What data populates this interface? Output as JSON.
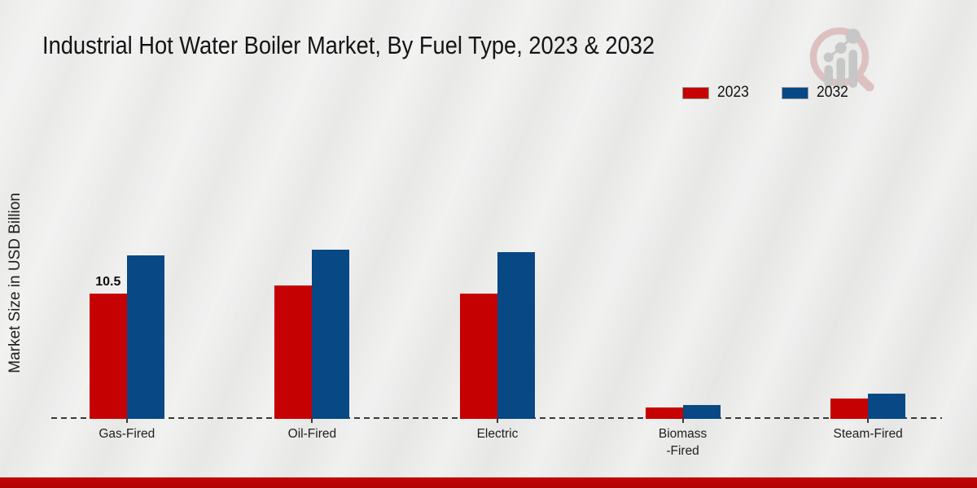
{
  "title": "Industrial Hot Water Boiler Market, By Fuel Type, 2023 & 2032",
  "ylabel": "Market Size in USD Billion",
  "legend": [
    {
      "label": "2023",
      "color": "#c60101"
    },
    {
      "label": "2032",
      "color": "#074885"
    }
  ],
  "colors": {
    "bar_2023": "#c60101",
    "bar_2032": "#074885",
    "background": "#e8e8e7",
    "axis_dash": "#3a3a3a",
    "bottom_accent": "#b90404",
    "logo_pink": "#dcbcbc",
    "logo_gray": "#c4c4c4"
  },
  "chart_data": {
    "type": "bar",
    "categories": [
      "Gas-Fired",
      "Oil-Fired",
      "Electric",
      "Biomass\n-Fired",
      "Steam-Fired"
    ],
    "series": [
      {
        "name": "2023",
        "color": "#c60101",
        "values": [
          10.5,
          11.2,
          10.5,
          0.95,
          1.7
        ],
        "point_labels": [
          "10.5",
          null,
          null,
          null,
          null
        ]
      },
      {
        "name": "2032",
        "color": "#074885",
        "values": [
          13.7,
          14.2,
          14.0,
          1.15,
          2.1
        ],
        "point_labels": [
          null,
          null,
          null,
          null,
          null
        ]
      }
    ],
    "title": "Industrial Hot Water Boiler Market, By Fuel Type, 2023 & 2032",
    "xlabel": "",
    "ylabel": "Market Size in USD Billion",
    "ylim": [
      0,
      22
    ],
    "grid": false,
    "legend_position": "top-right",
    "baseline_style": "dashed",
    "data_label_note": "only Gas-Fired 2023 bar is labeled (10.5)"
  }
}
